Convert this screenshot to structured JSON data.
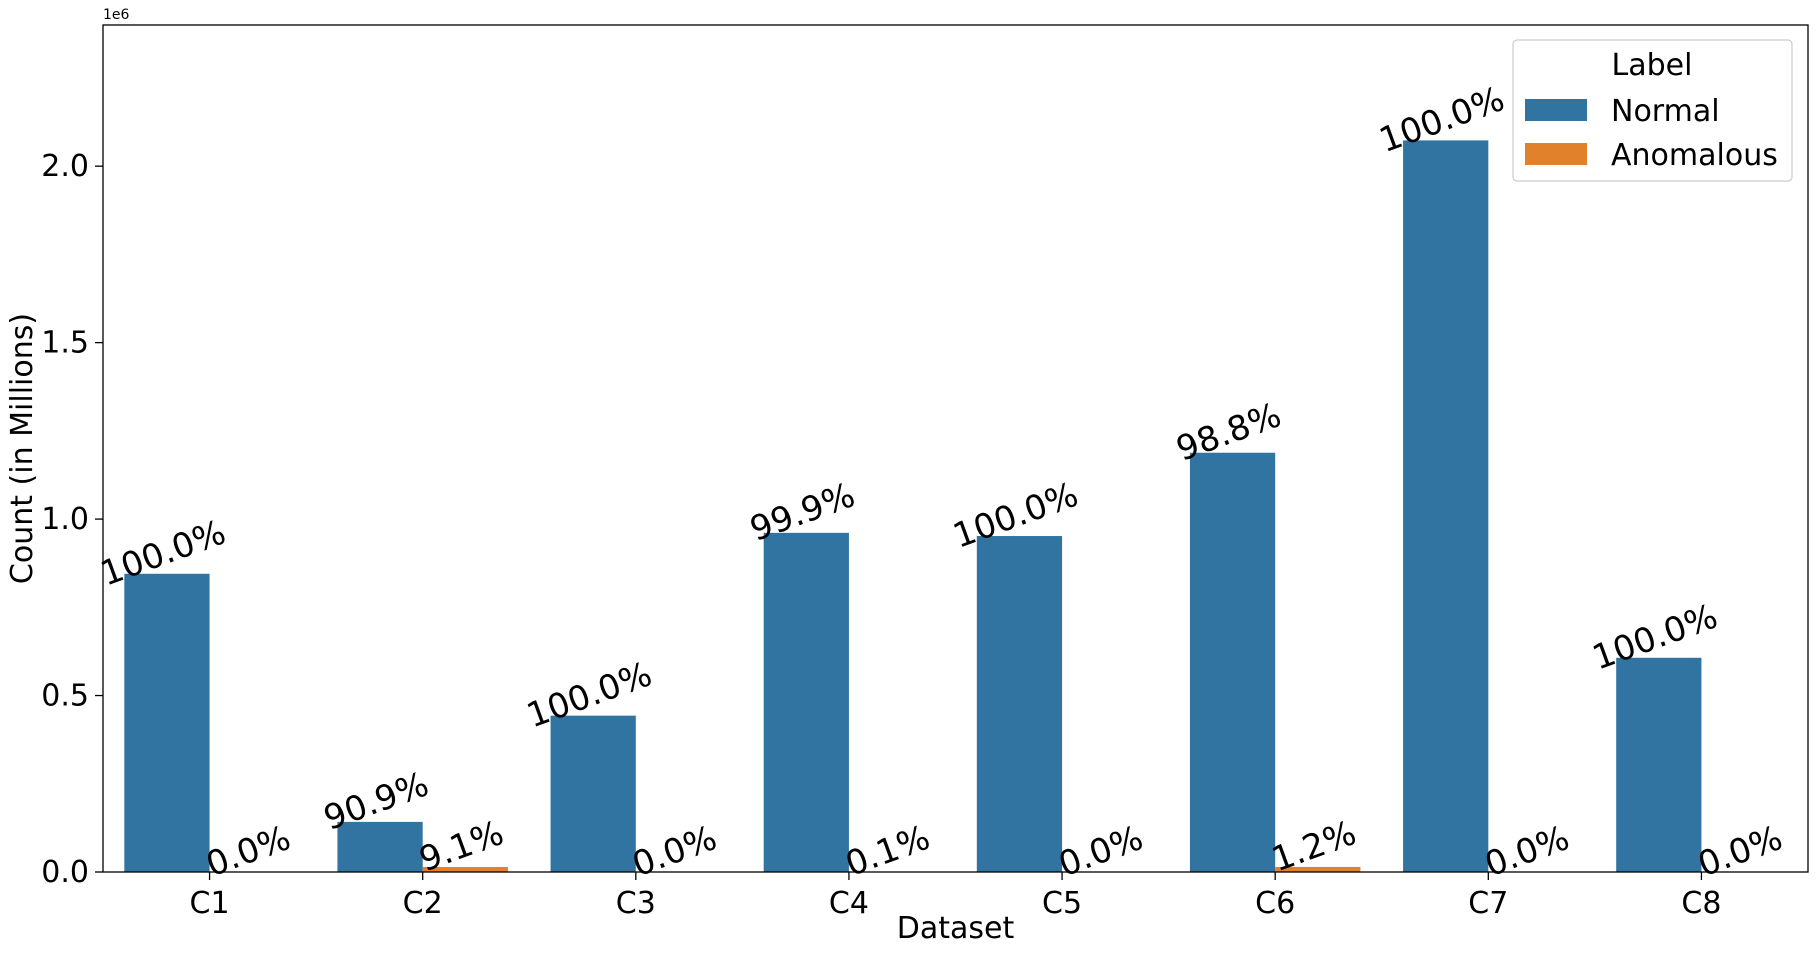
{
  "chart_data": {
    "type": "bar",
    "categories": [
      "C1",
      "C2",
      "C3",
      "C4",
      "C5",
      "C6",
      "C7",
      "C8"
    ],
    "series": [
      {
        "name": "Normal",
        "color": "#3274a1",
        "values": [
          845000,
          142000,
          443000,
          961000,
          952000,
          1188000,
          2073000,
          607000
        ],
        "labels": [
          "100.0%",
          "90.9%",
          "100.0%",
          "99.9%",
          "100.0%",
          "98.8%",
          "100.0%",
          "100.0%"
        ]
      },
      {
        "name": "Anomalous",
        "color": "#e1812c",
        "values": [
          0,
          14200,
          0,
          1000,
          0,
          14300,
          0,
          0
        ],
        "labels": [
          "0.0%",
          "9.1%",
          "0.0%",
          "0.1%",
          "0.0%",
          "1.2%",
          "0.0%",
          "0.0%"
        ]
      }
    ],
    "xlabel": "Dataset",
    "ylabel": "Count (in Millions)",
    "ylim": [
      0,
      2400000
    ],
    "yticks": [
      0,
      500000,
      1000000,
      1500000,
      2000000
    ],
    "ytick_labels": [
      "0.0",
      "0.5",
      "1.0",
      "1.5",
      "2.0"
    ],
    "y_offset_text": "1e6",
    "legend_title": "Label",
    "legend_position": "top-right",
    "grid": false
  }
}
